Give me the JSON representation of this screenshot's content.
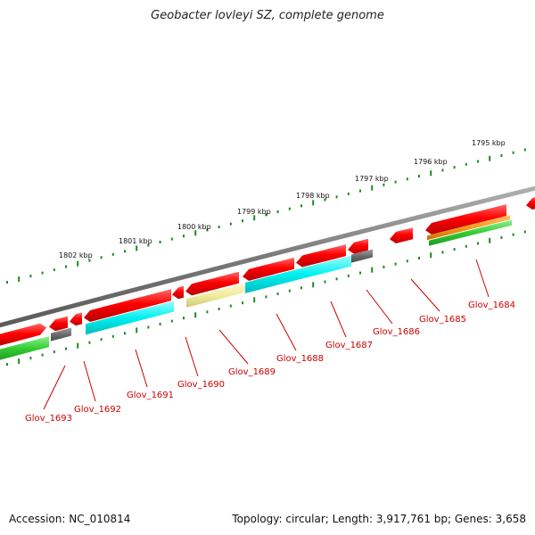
{
  "title": "Geobacter lovleyi SZ, complete genome",
  "accession": "Accession: NC_010814",
  "summary": "Topology: circular; Length: 3,917,761 bp; Genes: 3,658",
  "colors": {
    "cds": "#ff0000",
    "cds_dark": "#c80000",
    "backbone": "#808080",
    "blast_cyan": "#00f0f0",
    "blast_yellow": "#f0ec9c",
    "blast_gray": "#707070",
    "blast_green": "#33cc33",
    "blast_orange": "#f39a1a",
    "tick": "#1f8a1f",
    "label": "#cc0000"
  },
  "ruler": {
    "labels": [
      "1802 kbp",
      "1801 kbp",
      "1800 kbp",
      "1799 kbp",
      "1798 kbp",
      "1797 kbp",
      "1796 kbp",
      "1795 kbp"
    ]
  },
  "genes": [
    {
      "label": "Glov_1693"
    },
    {
      "label": "Glov_1692"
    },
    {
      "label": "Glov_1691"
    },
    {
      "label": "Glov_1690"
    },
    {
      "label": "Glov_1689"
    },
    {
      "label": "Glov_1688"
    },
    {
      "label": "Glov_1687"
    },
    {
      "label": "Glov_1686"
    },
    {
      "label": "Glov_1685"
    },
    {
      "label": "Glov_1684"
    }
  ]
}
